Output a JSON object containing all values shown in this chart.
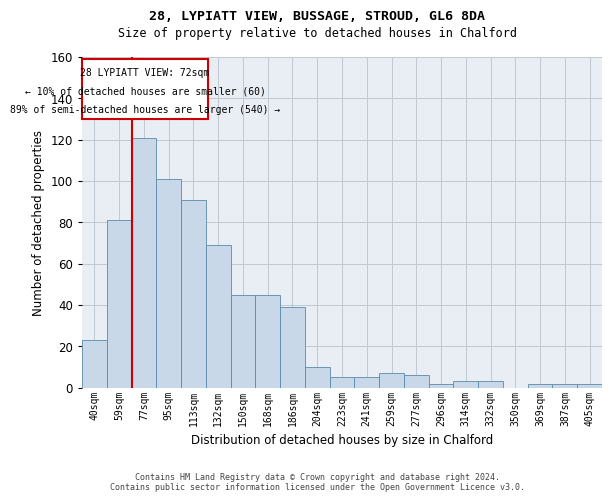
{
  "title1": "28, LYPIATT VIEW, BUSSAGE, STROUD, GL6 8DA",
  "title2": "Size of property relative to detached houses in Chalford",
  "xlabel": "Distribution of detached houses by size in Chalford",
  "ylabel": "Number of detached properties",
  "categories": [
    "40sqm",
    "59sqm",
    "77sqm",
    "95sqm",
    "113sqm",
    "132sqm",
    "150sqm",
    "168sqm",
    "186sqm",
    "204sqm",
    "223sqm",
    "241sqm",
    "259sqm",
    "277sqm",
    "296sqm",
    "314sqm",
    "332sqm",
    "350sqm",
    "369sqm",
    "387sqm",
    "405sqm"
  ],
  "values": [
    23,
    81,
    121,
    101,
    91,
    69,
    45,
    45,
    39,
    10,
    5,
    5,
    7,
    6,
    2,
    3,
    3,
    0,
    2,
    2,
    2
  ],
  "bar_color": "#c8d8e8",
  "bar_edge_color": "#5a8aaa",
  "marker_label_line1": "28 LYPIATT VIEW: 72sqm",
  "marker_label_line2": "← 10% of detached houses are smaller (60)",
  "marker_label_line3": "89% of semi-detached houses are larger (540) →",
  "marker_color": "#cc0000",
  "ylim": [
    0,
    160
  ],
  "yticks": [
    0,
    20,
    40,
    60,
    80,
    100,
    120,
    140,
    160
  ],
  "grid_color": "#c0c8d0",
  "bg_color": "#e8eef4",
  "footer_line1": "Contains HM Land Registry data © Crown copyright and database right 2024.",
  "footer_line2": "Contains public sector information licensed under the Open Government Licence v3.0.",
  "annotation_box_edge_color": "#cc0000"
}
